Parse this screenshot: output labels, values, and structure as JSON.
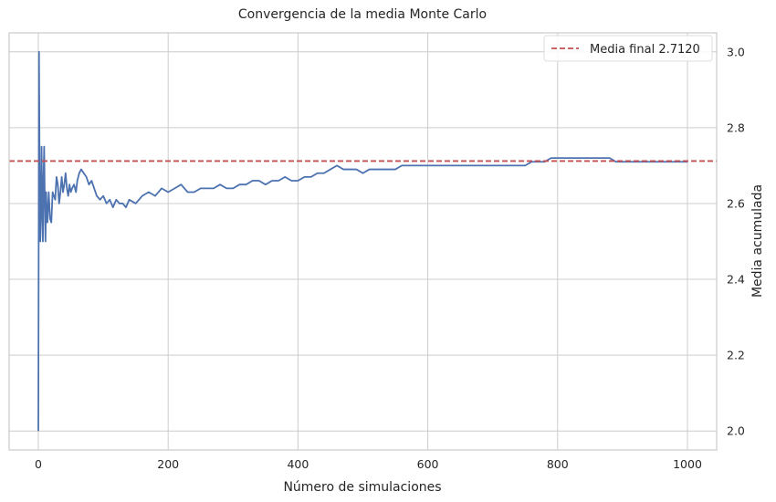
{
  "chart_data": {
    "type": "line",
    "title": "Convergencia de la media Monte Carlo",
    "xlabel": "Número de simulaciones",
    "ylabel": "Media acumulada",
    "xlim": [
      -45,
      1045
    ],
    "ylim": [
      1.95,
      3.05
    ],
    "x_ticks": [
      0,
      200,
      400,
      600,
      800,
      1000
    ],
    "x_tick_labels": [
      "0",
      "200",
      "400",
      "600",
      "800",
      "1000"
    ],
    "y_ticks": [
      2.0,
      2.2,
      2.4,
      2.6,
      2.8,
      3.0
    ],
    "y_tick_labels": [
      "2.0",
      "2.2",
      "2.4",
      "2.6",
      "2.8",
      "3.0"
    ],
    "y_axis_side": "right",
    "grid": true,
    "legend_position": "top-right",
    "series": [
      {
        "color": "#4c72b0",
        "x": [
          0,
          1,
          2,
          3,
          4,
          5,
          6,
          7,
          8,
          9,
          10,
          11,
          12,
          13,
          14,
          16,
          18,
          20,
          22,
          24,
          26,
          28,
          30,
          32,
          34,
          36,
          38,
          40,
          42,
          44,
          46,
          48,
          50,
          52,
          55,
          58,
          60,
          63,
          66,
          70,
          74,
          78,
          82,
          86,
          90,
          95,
          100,
          105,
          110,
          115,
          120,
          125,
          130,
          135,
          140,
          150,
          160,
          170,
          180,
          190,
          200,
          210,
          220,
          230,
          240,
          250,
          260,
          270,
          280,
          290,
          300,
          310,
          320,
          330,
          340,
          350,
          360,
          370,
          380,
          390,
          400,
          410,
          420,
          430,
          440,
          450,
          460,
          470,
          480,
          490,
          500,
          510,
          520,
          530,
          540,
          550,
          560,
          570,
          580,
          590,
          600,
          610,
          620,
          630,
          640,
          650,
          660,
          670,
          680,
          690,
          700,
          710,
          720,
          730,
          740,
          750,
          760,
          770,
          780,
          790,
          800,
          810,
          820,
          830,
          840,
          850,
          860,
          870,
          880,
          890,
          900,
          910,
          920,
          930,
          940,
          950,
          960,
          970,
          980,
          990,
          1000
        ],
        "values": [
          2.0,
          3.0,
          2.67,
          2.5,
          2.6,
          2.75,
          2.57,
          2.5,
          2.67,
          2.75,
          2.6,
          2.5,
          2.63,
          2.58,
          2.55,
          2.63,
          2.56,
          2.55,
          2.63,
          2.62,
          2.61,
          2.67,
          2.65,
          2.6,
          2.63,
          2.67,
          2.63,
          2.65,
          2.68,
          2.64,
          2.62,
          2.65,
          2.63,
          2.64,
          2.65,
          2.63,
          2.66,
          2.68,
          2.69,
          2.68,
          2.67,
          2.65,
          2.66,
          2.64,
          2.62,
          2.61,
          2.62,
          2.6,
          2.61,
          2.59,
          2.61,
          2.6,
          2.6,
          2.59,
          2.61,
          2.6,
          2.62,
          2.63,
          2.62,
          2.64,
          2.63,
          2.64,
          2.65,
          2.63,
          2.63,
          2.64,
          2.64,
          2.64,
          2.65,
          2.64,
          2.64,
          2.65,
          2.65,
          2.66,
          2.66,
          2.65,
          2.66,
          2.66,
          2.67,
          2.66,
          2.66,
          2.67,
          2.67,
          2.68,
          2.68,
          2.69,
          2.7,
          2.69,
          2.69,
          2.69,
          2.68,
          2.69,
          2.69,
          2.69,
          2.69,
          2.69,
          2.7,
          2.7,
          2.7,
          2.7,
          2.7,
          2.7,
          2.7,
          2.7,
          2.7,
          2.7,
          2.7,
          2.7,
          2.7,
          2.7,
          2.7,
          2.7,
          2.7,
          2.7,
          2.7,
          2.7,
          2.71,
          2.71,
          2.71,
          2.72,
          2.72,
          2.72,
          2.72,
          2.72,
          2.72,
          2.72,
          2.72,
          2.72,
          2.72,
          2.71,
          2.71,
          2.71,
          2.71,
          2.71,
          2.71,
          2.71,
          2.71,
          2.71,
          2.71,
          2.71,
          2.71
        ]
      },
      {
        "name": "Media final 2.7120",
        "color": "#c44e52",
        "style": "dashed",
        "value": 2.712
      }
    ]
  }
}
